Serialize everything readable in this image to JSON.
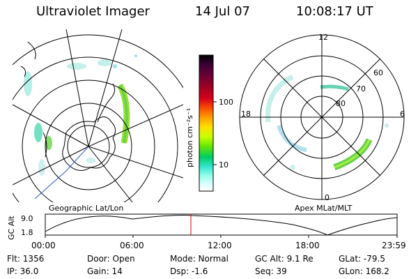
{
  "header": {
    "title": "Ultraviolet Imager",
    "date": "14 Jul 07",
    "time": "10:08:17 UT"
  },
  "colorbar": {
    "unit_label": "photon cm⁻²s⁻¹",
    "ticks": [
      "100",
      "10"
    ],
    "colors": [
      "#000000",
      "#3b0033",
      "#6a0036",
      "#a00022",
      "#d8001a",
      "#ff5a00",
      "#ffa000",
      "#ffe100",
      "#c8ff00",
      "#66e600",
      "#00cc66",
      "#33e6cc",
      "#99ffee",
      "#dfffff",
      "#ffffff"
    ]
  },
  "left_map": {
    "caption": "Geographic Lat/Lon"
  },
  "right_map": {
    "caption": "Apex MLat/MLT",
    "mlt_labels": {
      "top": "12",
      "left": "18",
      "right": "6",
      "bottom": "0"
    },
    "lat_labels": [
      "60",
      "70",
      "80"
    ]
  },
  "timeline": {
    "axis_label": "GC Alt",
    "y_ticks": [
      "9.0",
      "1.8"
    ],
    "x_ticks": [
      "00:00",
      "06:00",
      "12:00",
      "18:00",
      "23:59"
    ],
    "marker_color": "#cc0000"
  },
  "status": {
    "flt": "Flt: 1356",
    "ip": "IP: 36.0",
    "door": "Door: Open",
    "gain": "Gain: 14",
    "mode": "Mode: Normal",
    "dsp": "Dsp:    -1.6",
    "gc_alt": "GC Alt: 9.1 Re",
    "seq": "Seq: 39",
    "glat": "GLat: -79.5",
    "glon": "GLon: 168.2"
  }
}
